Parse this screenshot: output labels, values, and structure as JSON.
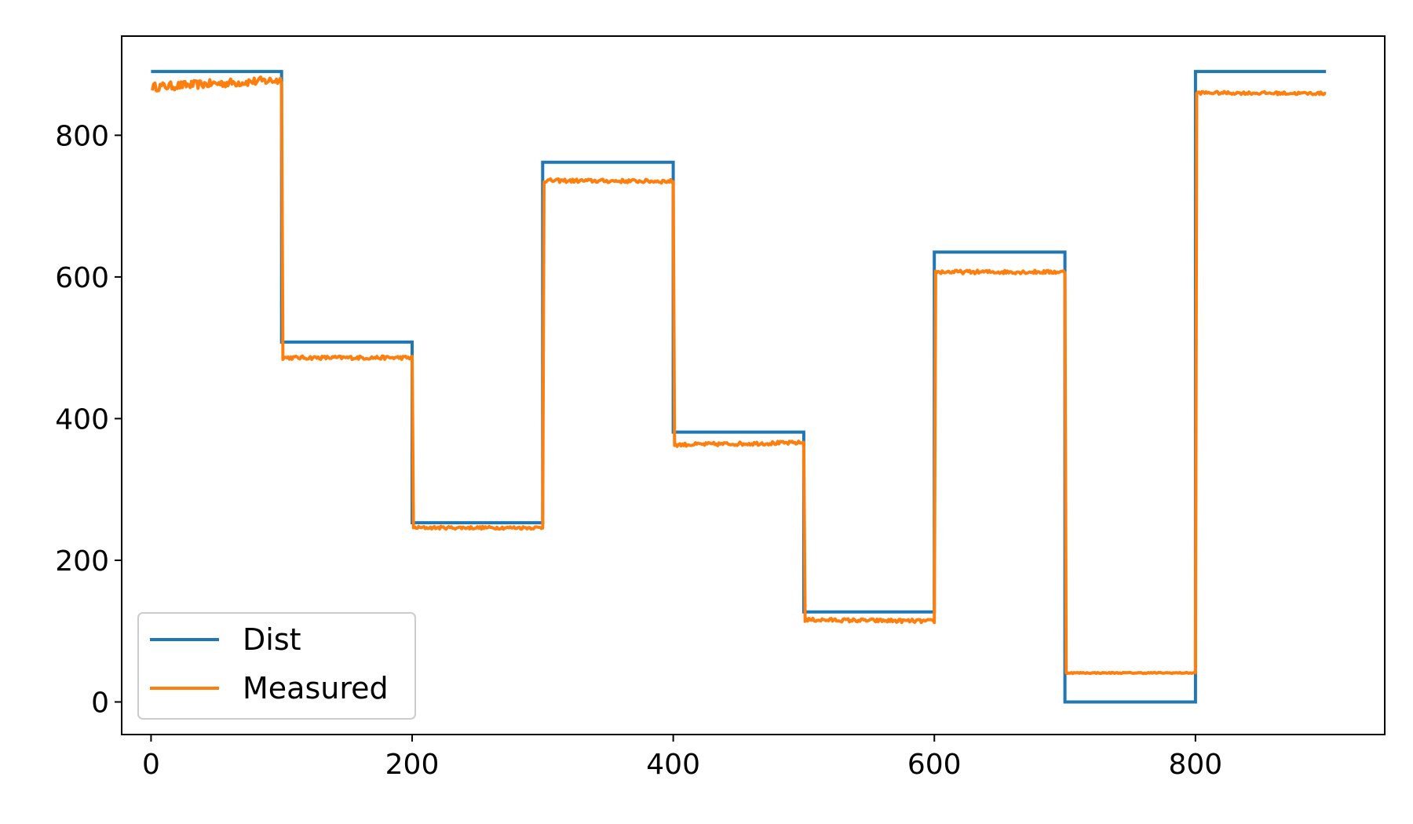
{
  "chart_data": {
    "type": "line",
    "title": "",
    "xlabel": "",
    "ylabel": "",
    "xlim": [
      -22.5,
      945
    ],
    "ylim": [
      -46,
      940
    ],
    "x_ticks": [
      0,
      200,
      400,
      600,
      800
    ],
    "x_tick_labels": [
      "0",
      "200",
      "400",
      "600",
      "800"
    ],
    "y_ticks": [
      0,
      200,
      400,
      600,
      800
    ],
    "y_tick_labels": [
      "0",
      "200",
      "400",
      "600",
      "800"
    ],
    "grid": false,
    "legend": {
      "placement": "lower-left",
      "entries": [
        "Dist",
        "Measured"
      ]
    },
    "series": [
      {
        "name": "Dist",
        "color": "#1f77b4",
        "step_x": [
          0,
          100,
          100,
          200,
          200,
          300,
          300,
          400,
          400,
          500,
          500,
          600,
          600,
          700,
          700,
          800,
          800,
          900
        ],
        "step_y": [
          890,
          890,
          508,
          508,
          253,
          253,
          762,
          762,
          381,
          381,
          127,
          127,
          635,
          635,
          0,
          0,
          890,
          890
        ]
      },
      {
        "name": "Measured",
        "color": "#ff7f0e",
        "segments": [
          {
            "x_start": 0,
            "x_end": 100,
            "start": 868,
            "end": 878,
            "noise": 6
          },
          {
            "x_start": 100,
            "x_end": 200,
            "start": 486,
            "end": 486,
            "noise": 2.5
          },
          {
            "x_start": 200,
            "x_end": 300,
            "start": 246,
            "end": 246,
            "noise": 2
          },
          {
            "x_start": 300,
            "x_end": 400,
            "start": 736,
            "end": 735,
            "noise": 2.5
          },
          {
            "x_start": 400,
            "x_end": 500,
            "start": 363,
            "end": 366,
            "noise": 2.5
          },
          {
            "x_start": 500,
            "x_end": 600,
            "start": 116,
            "end": 114,
            "noise": 2.5
          },
          {
            "x_start": 600,
            "x_end": 700,
            "start": 607,
            "end": 607,
            "noise": 2.5
          },
          {
            "x_start": 700,
            "x_end": 800,
            "start": 41,
            "end": 41,
            "noise": 0.8
          },
          {
            "x_start": 800,
            "x_end": 900,
            "start": 860,
            "end": 859,
            "noise": 2
          }
        ]
      }
    ]
  }
}
